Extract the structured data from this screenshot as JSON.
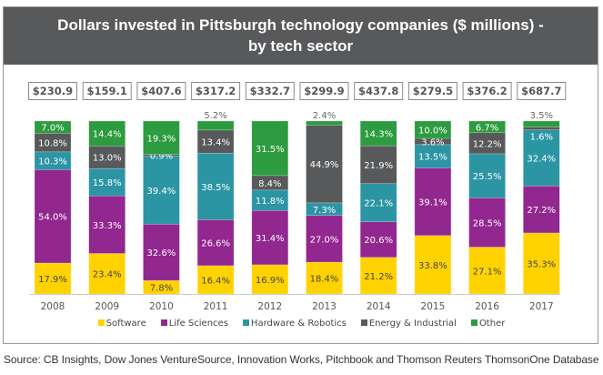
{
  "chart_data": {
    "type": "bar",
    "stacked": true,
    "title": "Dollars invested in Pittsburgh technology companies ($ millions) - by tech sector",
    "title_lines": [
      "Dollars invested in Pittsburgh technology companies ($ millions) -",
      "by tech sector"
    ],
    "xlabel": "",
    "ylabel": "",
    "ylim": [
      0,
      100
    ],
    "categories": [
      "2008",
      "2009",
      "2010",
      "2011",
      "2012",
      "2013",
      "2014",
      "2015",
      "2016",
      "2017"
    ],
    "totals": [
      "$230.9",
      "$159.1",
      "$407.6",
      "$317.2",
      "$332.7",
      "$299.9",
      "$437.8",
      "$279.5",
      "$376.2",
      "$687.7"
    ],
    "series": [
      {
        "name": "Software",
        "color": "#ffd200",
        "label_color": "#444444",
        "values": [
          17.9,
          23.4,
          7.8,
          16.4,
          16.9,
          18.4,
          21.2,
          33.8,
          27.1,
          35.3
        ]
      },
      {
        "name": "Life Sciences",
        "color": "#91278f",
        "label_color": "#ffffff",
        "values": [
          54.0,
          33.3,
          32.6,
          26.6,
          31.4,
          27.0,
          20.6,
          39.1,
          28.5,
          27.2
        ]
      },
      {
        "name": "Hardware & Robotics",
        "color": "#2c95a4",
        "label_color": "#ffffff",
        "values": [
          10.3,
          15.8,
          39.4,
          38.5,
          11.8,
          7.3,
          22.1,
          13.5,
          25.5,
          32.4
        ]
      },
      {
        "name": "Energy & Industrial",
        "color": "#58595b",
        "label_color": "#ffffff",
        "values": [
          10.8,
          13.0,
          0.9,
          13.4,
          8.4,
          44.9,
          21.9,
          3.6,
          12.2,
          1.6
        ]
      },
      {
        "name": "Other",
        "color": "#2d9b3f",
        "label_color": "#ffffff",
        "values": [
          7.0,
          14.4,
          19.3,
          5.2,
          31.5,
          2.4,
          14.3,
          10.0,
          6.7,
          3.5
        ]
      }
    ],
    "grid": false,
    "legend_position": "bottom"
  },
  "source": "Source: CB Insights, Dow Jones VentureSource, Innovation Works, Pitchbook and Thomson Reuters ThomsonOne Database"
}
